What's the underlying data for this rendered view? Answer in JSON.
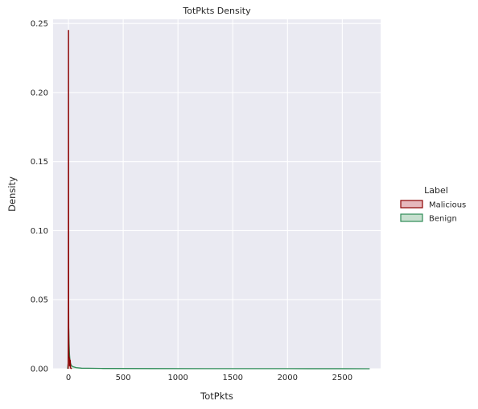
{
  "chart_data": {
    "type": "area",
    "title": "TotPkts Density",
    "xlabel": "TotPkts",
    "ylabel": "Density",
    "xlim": [
      -140,
      2850
    ],
    "ylim": [
      0,
      0.253
    ],
    "xticks": [
      0,
      500,
      1000,
      1500,
      2000,
      2500
    ],
    "yticks": [
      0.0,
      0.05,
      0.1,
      0.15,
      0.2,
      0.25
    ],
    "xtick_labels": [
      "0",
      "500",
      "1000",
      "1500",
      "2000",
      "2500"
    ],
    "ytick_labels": [
      "0.00",
      "0.05",
      "0.10",
      "0.15",
      "0.20",
      "0.25"
    ],
    "grid": true,
    "legend": {
      "title": "Label",
      "placement": "center-right"
    },
    "colors": {
      "background": "#eaeaf2",
      "grid": "#ffffff",
      "malicious_line": "#8b0000",
      "malicious_fill": "#e6b8bc",
      "benign_line": "#2e8b57",
      "benign_fill": "#c7e0cf"
    },
    "series": [
      {
        "name": "Malicious",
        "x": [
          -3,
          -1,
          0,
          1,
          2,
          3,
          4,
          6,
          8,
          9,
          10,
          12,
          14,
          17,
          20,
          30
        ],
        "y": [
          0,
          0.05,
          0.245,
          0.245,
          0.05,
          0.022,
          0.01,
          0.008,
          0.008,
          0.002,
          0.007,
          0.007,
          0.006,
          0.006,
          0.0005,
          0
        ]
      },
      {
        "name": "Benign",
        "x": [
          -8,
          -3,
          -1,
          0,
          1,
          3,
          6,
          10,
          15,
          25,
          40,
          70,
          120,
          300,
          800,
          1500,
          2000,
          2500,
          2750
        ],
        "y": [
          0,
          0.004,
          0.015,
          0.03,
          0.032,
          0.028,
          0.018,
          0.01,
          0.005,
          0.0025,
          0.0015,
          0.0008,
          0.0004,
          0.0002,
          0.0001,
          8e-05,
          6e-05,
          3e-05,
          0
        ]
      }
    ]
  }
}
